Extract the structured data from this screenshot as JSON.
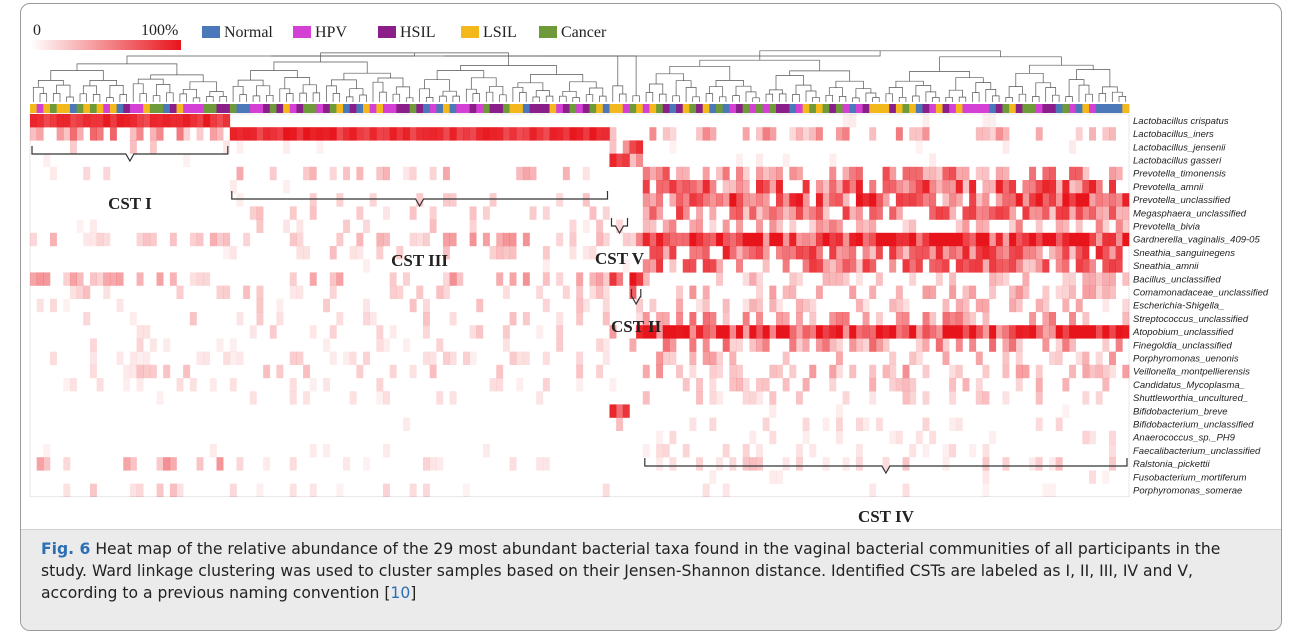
{
  "figure": {
    "fig_label": "Fig. 6",
    "caption_part1": " Heat map of the relative abundance of the 29 most abundant bacterial taxa found in the vaginal bacterial communities of all participants in the study. Ward linkage clustering was used to cluster samples based on their Jensen-Shannon distance. Identified CSTs are labeled as I, II, III, IV and V, according to a previous naming convention [",
    "caption_ref": "10",
    "caption_part2": "]"
  },
  "chart_data": {
    "type": "heatmap",
    "color_scale": {
      "min_label": "0",
      "max_label": "100%",
      "min_color": "#ffffff",
      "max_color": "#e8141b"
    },
    "legend": {
      "placement": "top-left",
      "items": [
        {
          "label": "Normal",
          "color": "#4a78b8"
        },
        {
          "label": "HPV",
          "color": "#d43fd4"
        },
        {
          "label": "HSIL",
          "color": "#8a1f8a"
        },
        {
          "label": "LSIL",
          "color": "#f2b81c"
        },
        {
          "label": "Cancer",
          "color": "#6f9a3a"
        }
      ]
    },
    "taxa": [
      "Lactobacillus crispatus",
      "Lactobacillus_iners",
      "Lactobacillus_jensenii",
      "Lactobacillus gasseri",
      "Prevotella_timonensis",
      "Prevotella_amnii",
      "Prevotella_unclassified",
      "Megasphaera_unclassified",
      "Prevotella_bivia",
      "Gardnerella_vaginalis_409-05",
      "Sneathia_sanguinegens",
      "Sneathia_amnii",
      "Bacillus_unclassified",
      "Comamonadaceae_unclassified",
      "Escherichia-Shigella_",
      "Streptococcus_unclassified",
      "Atopobium_unclassified",
      "Finegoldia_unclassified",
      "Porphyromonas_uenonis",
      "Veillonella_montpellierensis",
      "Candidatus_Mycoplasma_",
      "Shuttleworthia_uncultured_",
      "Bifidobacterium_breve",
      "Bifidobacterium_unclassified",
      "Anaerococcus_sp._PH9",
      "Faecalibacterium_unclassified",
      "Ralstonia_pickettii",
      "Fusobacterium_mortiferum",
      "Porphyromonas_somerae"
    ],
    "clusters": [
      {
        "label": "CST I",
        "sample_range": [
          0,
          29
        ]
      },
      {
        "label": "CST III",
        "sample_range": [
          30,
          86
        ]
      },
      {
        "label": "CST V",
        "sample_range": [
          87,
          89
        ]
      },
      {
        "label": "CST II",
        "sample_range": [
          90,
          91
        ]
      },
      {
        "label": "CST IV",
        "sample_range": [
          92,
          164
        ]
      }
    ],
    "abundance_profile": {
      "CST I": [
        0.95,
        0.35,
        0.15,
        0.05,
        0.1,
        0.03,
        0.03,
        0.05,
        0.05,
        0.2,
        0.05,
        0.03,
        0.25,
        0.15,
        0.12,
        0.15,
        0.1,
        0.1,
        0.08,
        0.15,
        0.1,
        0.05,
        0.03,
        0.05,
        0.03,
        0.1,
        0.25,
        0.03,
        0.15
      ],
      "CST III": [
        0.03,
        0.95,
        0.05,
        0.03,
        0.2,
        0.05,
        0.15,
        0.15,
        0.15,
        0.25,
        0.15,
        0.05,
        0.25,
        0.15,
        0.15,
        0.15,
        0.15,
        0.12,
        0.12,
        0.15,
        0.1,
        0.08,
        0.03,
        0.05,
        0.03,
        0.05,
        0.1,
        0.05,
        0.1
      ],
      "CST V": [
        0.05,
        0.3,
        0.25,
        0.9,
        0.1,
        0.05,
        0.05,
        0.05,
        0.1,
        0.2,
        0.05,
        0.05,
        0.5,
        0.1,
        0.2,
        0.1,
        0.4,
        0.1,
        0.1,
        0.05,
        0.05,
        0.05,
        0.6,
        0.2,
        0.05,
        0.05,
        0.05,
        0.05,
        0.05
      ],
      "CST II": [
        0.05,
        0.2,
        0.95,
        0.3,
        0.1,
        0.05,
        0.05,
        0.05,
        0.05,
        0.3,
        0.05,
        0.05,
        0.6,
        0.4,
        0.2,
        0.2,
        0.5,
        0.2,
        0.1,
        0.05,
        0.05,
        0.05,
        0.1,
        0.1,
        0.05,
        0.05,
        0.05,
        0.05,
        0.05
      ],
      "CST IV": [
        0.05,
        0.3,
        0.05,
        0.05,
        0.4,
        0.5,
        0.55,
        0.45,
        0.3,
        0.8,
        0.5,
        0.45,
        0.2,
        0.25,
        0.2,
        0.35,
        0.75,
        0.35,
        0.25,
        0.25,
        0.2,
        0.15,
        0.05,
        0.1,
        0.1,
        0.1,
        0.15,
        0.08,
        0.08
      ]
    },
    "n_samples": 165
  }
}
